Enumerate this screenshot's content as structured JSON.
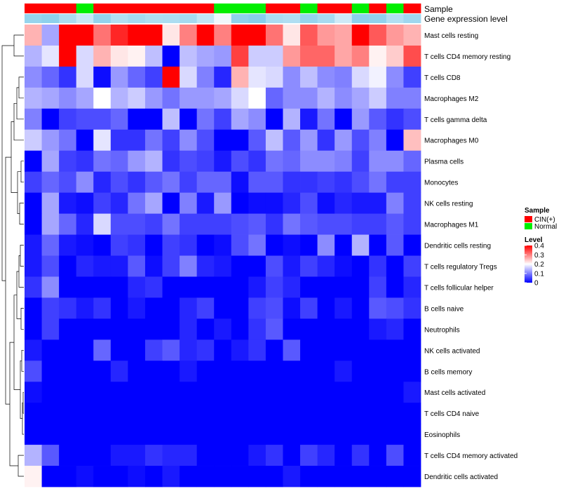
{
  "chart_data": {
    "type": "heatmap",
    "title": "",
    "annotation_labels": [
      "Sample",
      "Gene expression level"
    ],
    "row_labels": [
      "Mast cells resting",
      "T cells CD4 memory resting",
      "T cells CD8",
      "Macrophages M2",
      "T cells gamma delta",
      "Macrophages M0",
      "Plasma cells",
      "Monocytes",
      "NK cells resting",
      "Macrophages M1",
      "Dendritic cells resting",
      "T cells regulatory  Tregs",
      "T cells follicular helper",
      "B cells naive",
      "Neutrophils",
      "NK cells activated",
      "B cells memory",
      "Mast cells activated",
      "T cells CD4 naive",
      "Eosinophils",
      "T cells CD4 memory activated",
      "Dendritic cells activated"
    ],
    "sample_groups": [
      "CIN(+)",
      "CIN(+)",
      "CIN(+)",
      "Normal",
      "CIN(+)",
      "CIN(+)",
      "CIN(+)",
      "CIN(+)",
      "CIN(+)",
      "CIN(+)",
      "CIN(+)",
      "Normal",
      "Normal",
      "Normal",
      "CIN(+)",
      "CIN(+)",
      "Normal",
      "CIN(+)",
      "CIN(+)",
      "Normal",
      "CIN(+)",
      "Normal",
      "CIN(+)"
    ],
    "legend": {
      "sample_title": "Sample",
      "sample_entries": [
        {
          "name": "CIN(+)",
          "color": "#ff0000"
        },
        {
          "name": "Normal",
          "color": "#00ee00"
        }
      ],
      "level_title": "Level",
      "level_ticks": [
        "0.4",
        "0.3",
        "0.2",
        "0.1",
        "0"
      ],
      "position": "right"
    },
    "color_scale": {
      "min": 0,
      "max": 0.4,
      "low": "#0000ff",
      "mid": "#ffffff",
      "high": "#ff0000"
    },
    "annotation_colors": {
      "CIN(+)": "#ff0000",
      "Normal": "#00ee00",
      "expression_low": "#f0f8fc",
      "expression_high": "#87ceeb"
    },
    "values": [
      [
        0.26,
        0.13,
        0.4,
        0.4,
        0.31,
        0.37,
        0.4,
        0.4,
        0.22,
        0.3,
        0.4,
        0.3,
        0.4,
        0.4,
        0.31,
        0.22,
        0.33,
        0.28,
        0.27,
        0.4,
        0.33,
        0.28,
        0.26
      ],
      [
        0.14,
        0.18,
        0.4,
        0.17,
        0.26,
        0.22,
        0.21,
        0.15,
        0.0,
        0.15,
        0.13,
        0.12,
        0.35,
        0.16,
        0.16,
        0.28,
        0.32,
        0.32,
        0.27,
        0.3,
        0.21,
        0.24,
        0.34
      ],
      [
        0.11,
        0.08,
        0.04,
        0.17,
        0.01,
        0.12,
        0.08,
        0.05,
        0.4,
        0.17,
        0.1,
        0.03,
        0.26,
        0.18,
        0.17,
        0.11,
        0.15,
        0.11,
        0.1,
        0.17,
        0.19,
        0.11,
        0.05
      ],
      [
        0.14,
        0.13,
        0.11,
        0.13,
        0.2,
        0.14,
        0.16,
        0.12,
        0.09,
        0.12,
        0.12,
        0.13,
        0.17,
        0.2,
        0.08,
        0.11,
        0.11,
        0.14,
        0.11,
        0.13,
        0.16,
        0.1,
        0.1
      ],
      [
        0.1,
        0.0,
        0.05,
        0.06,
        0.06,
        0.08,
        0.0,
        0.0,
        0.15,
        0.0,
        0.09,
        0.05,
        0.13,
        0.11,
        0.0,
        0.14,
        0.02,
        0.09,
        0.0,
        0.12,
        0.07,
        0.04,
        0.06
      ],
      [
        0.16,
        0.12,
        0.09,
        0.0,
        0.18,
        0.04,
        0.04,
        0.09,
        0.05,
        0.11,
        0.06,
        0.0,
        0.0,
        0.07,
        0.15,
        0.07,
        0.12,
        0.04,
        0.12,
        0.06,
        0.1,
        0.0,
        0.25
      ],
      [
        0.0,
        0.13,
        0.05,
        0.04,
        0.09,
        0.08,
        0.12,
        0.14,
        0.04,
        0.06,
        0.05,
        0.02,
        0.06,
        0.04,
        0.09,
        0.08,
        0.11,
        0.11,
        0.1,
        0.05,
        0.11,
        0.11,
        0.08
      ],
      [
        0.05,
        0.08,
        0.06,
        0.11,
        0.03,
        0.06,
        0.04,
        0.07,
        0.09,
        0.05,
        0.08,
        0.08,
        0.01,
        0.07,
        0.07,
        0.04,
        0.04,
        0.05,
        0.04,
        0.06,
        0.09,
        0.05,
        0.05
      ],
      [
        0.0,
        0.13,
        0.02,
        0.01,
        0.05,
        0.03,
        0.09,
        0.13,
        0.0,
        0.1,
        0.02,
        0.12,
        0.0,
        0.01,
        0.01,
        0.03,
        0.06,
        0.01,
        0.03,
        0.02,
        0.02,
        0.1,
        0.05
      ],
      [
        0.0,
        0.13,
        0.08,
        0.03,
        0.17,
        0.06,
        0.06,
        0.05,
        0.09,
        0.05,
        0.05,
        0.05,
        0.06,
        0.07,
        0.04,
        0.09,
        0.07,
        0.06,
        0.06,
        0.05,
        0.05,
        0.07,
        0.05
      ],
      [
        0.02,
        0.08,
        0.02,
        0.01,
        0.0,
        0.05,
        0.04,
        0.0,
        0.05,
        0.04,
        0.0,
        0.01,
        0.06,
        0.09,
        0.0,
        0.01,
        0.0,
        0.11,
        0.0,
        0.14,
        0.0,
        0.07,
        0.0
      ],
      [
        0.02,
        0.06,
        0.0,
        0.03,
        0.02,
        0.02,
        0.07,
        0.01,
        0.05,
        0.1,
        0.03,
        0.02,
        0.0,
        0.0,
        0.06,
        0.02,
        0.05,
        0.03,
        0.01,
        0.0,
        0.04,
        0.0,
        0.05
      ],
      [
        0.04,
        0.11,
        0.0,
        0.0,
        0.0,
        0.0,
        0.03,
        0.04,
        0.0,
        0.0,
        0.0,
        0.0,
        0.0,
        0.02,
        0.05,
        0.03,
        0.0,
        0.0,
        0.0,
        0.0,
        0.05,
        0.0,
        0.03
      ],
      [
        0.0,
        0.05,
        0.04,
        0.02,
        0.04,
        0.0,
        0.02,
        0.0,
        0.0,
        0.03,
        0.05,
        0.0,
        0.0,
        0.05,
        0.06,
        0.01,
        0.05,
        0.0,
        0.02,
        0.0,
        0.07,
        0.06,
        0.04
      ],
      [
        0.0,
        0.05,
        0.0,
        0.0,
        0.0,
        0.0,
        0.0,
        0.0,
        0.0,
        0.03,
        0.0,
        0.02,
        0.0,
        0.04,
        0.07,
        0.0,
        0.0,
        0.0,
        0.0,
        0.0,
        0.02,
        0.03,
        0.0
      ],
      [
        0.02,
        0.0,
        0.0,
        0.0,
        0.08,
        0.0,
        0.0,
        0.05,
        0.07,
        0.03,
        0.04,
        0.0,
        0.02,
        0.04,
        0.0,
        0.07,
        0.0,
        0.0,
        0.0,
        0.0,
        0.0,
        0.0,
        0.0
      ],
      [
        0.06,
        0.0,
        0.0,
        0.0,
        0.0,
        0.03,
        0.0,
        0.0,
        0.0,
        0.02,
        0.0,
        0.0,
        0.0,
        0.0,
        0.0,
        0.0,
        0.0,
        0.0,
        0.02,
        0.0,
        0.0,
        0.0,
        0.0
      ],
      [
        0.01,
        0.0,
        0.0,
        0.0,
        0.0,
        0.0,
        0.0,
        0.0,
        0.0,
        0.0,
        0.0,
        0.0,
        0.0,
        0.0,
        0.0,
        0.0,
        0.0,
        0.0,
        0.0,
        0.0,
        0.0,
        0.0,
        0.02
      ],
      [
        0.0,
        0.0,
        0.0,
        0.0,
        0.0,
        0.0,
        0.0,
        0.0,
        0.0,
        0.0,
        0.0,
        0.0,
        0.0,
        0.0,
        0.0,
        0.0,
        0.0,
        0.0,
        0.0,
        0.0,
        0.0,
        0.0,
        0.0
      ],
      [
        0.0,
        0.0,
        0.0,
        0.0,
        0.0,
        0.0,
        0.0,
        0.0,
        0.0,
        0.0,
        0.0,
        0.0,
        0.0,
        0.0,
        0.0,
        0.0,
        0.0,
        0.0,
        0.0,
        0.0,
        0.0,
        0.0,
        0.0
      ],
      [
        0.14,
        0.07,
        0.0,
        0.0,
        0.0,
        0.02,
        0.02,
        0.04,
        0.03,
        0.03,
        0.0,
        0.0,
        0.0,
        0.02,
        0.04,
        0.0,
        0.05,
        0.03,
        0.0,
        0.04,
        0.0,
        0.06,
        0.0
      ],
      [
        0.21,
        0.0,
        0.0,
        0.01,
        0.0,
        0.0,
        0.01,
        0.0,
        0.02,
        0.0,
        0.0,
        0.0,
        0.0,
        0.0,
        0.0,
        0.02,
        0.0,
        0.0,
        0.0,
        0.0,
        0.0,
        0.0,
        0.0
      ]
    ]
  }
}
